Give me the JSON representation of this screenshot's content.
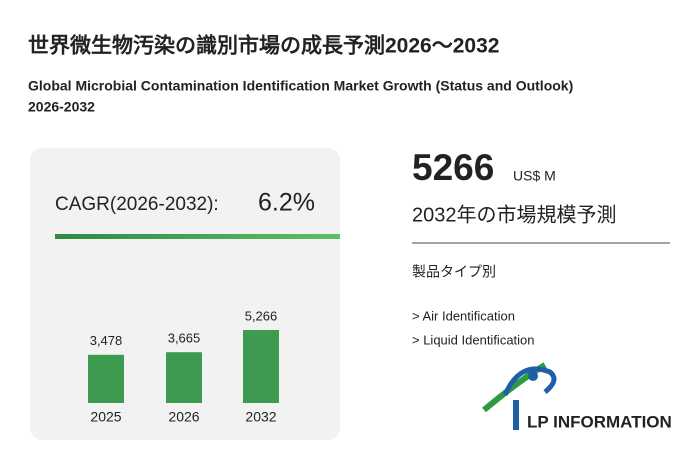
{
  "header": {
    "title": "世界微生物汚染の識別市場の成長予測2026～2032",
    "subtitle_line1": "Global Microbial Contamination Identification Market Growth (Status and Outlook)",
    "subtitle_line2": "2026-2032"
  },
  "cagr": {
    "label": "CAGR(2026-2032):",
    "value": "6.2%"
  },
  "chart_data": {
    "type": "bar",
    "categories": [
      "2025",
      "2026",
      "2032"
    ],
    "values": [
      3478,
      3665,
      5266
    ],
    "value_labels": [
      "3,478",
      "3,665",
      "5,266"
    ],
    "color": "#3d9a4f"
  },
  "market_size": {
    "value": 5266,
    "unit": "US$ M",
    "caption": "2032年の市場規模予測"
  },
  "segment": {
    "label": "製品タイプ別",
    "items": [
      "> Air Identification",
      "> Liquid Identification"
    ]
  },
  "logo": {
    "text": "LP INFORMATION"
  }
}
